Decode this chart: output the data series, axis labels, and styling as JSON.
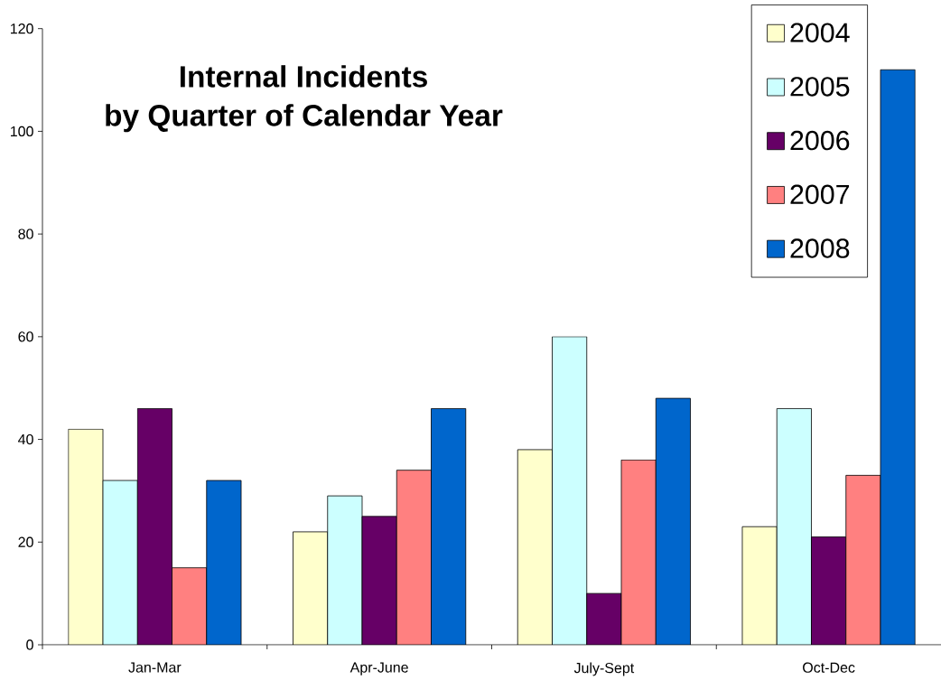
{
  "chart_data": {
    "type": "bar",
    "title": "Internal Incidents by Quarter of Calendar Year",
    "categories": [
      "Jan-Mar",
      "Apr-June",
      "July-Sept",
      "Oct-Dec"
    ],
    "series": [
      {
        "name": "2004",
        "color": "#ffffcc",
        "values": [
          42,
          22,
          38,
          23
        ]
      },
      {
        "name": "2005",
        "color": "#ccffff",
        "values": [
          32,
          29,
          60,
          46
        ]
      },
      {
        "name": "2006",
        "color": "#660066",
        "values": [
          46,
          25,
          10,
          21
        ]
      },
      {
        "name": "2007",
        "color": "#ff8080",
        "values": [
          15,
          34,
          36,
          33
        ]
      },
      {
        "name": "2008",
        "color": "#0066cc",
        "values": [
          32,
          46,
          48,
          112
        ]
      }
    ],
    "ylim": [
      0,
      120
    ],
    "yticks": [
      0,
      20,
      40,
      60,
      80,
      100,
      120
    ],
    "legend": "top right"
  }
}
